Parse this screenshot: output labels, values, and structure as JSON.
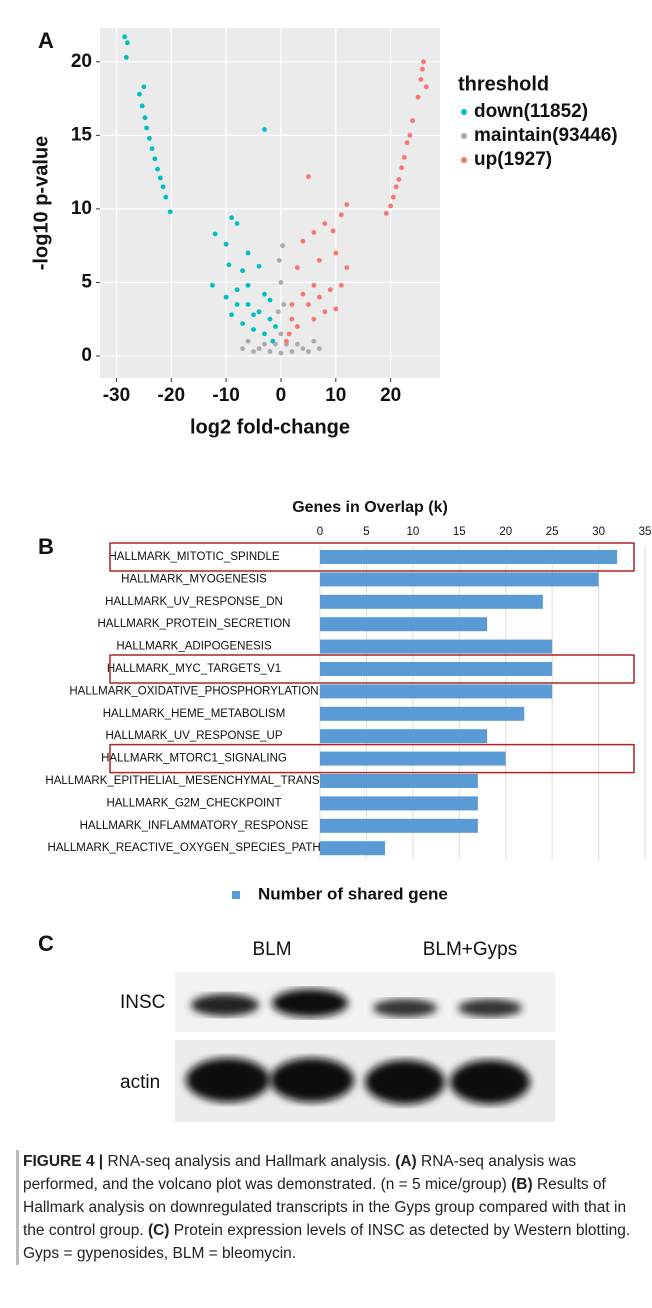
{
  "panels": [
    "A",
    "B",
    "C"
  ],
  "chart_data": [
    {
      "type": "scatter",
      "xlabel": "log2 fold-change",
      "ylabel": "-log10 p-value",
      "legend_title": "threshold",
      "legend": "right",
      "xlim": [
        -33,
        29
      ],
      "ylim": [
        -1.5,
        22.3
      ],
      "xticks": [
        -30,
        -20,
        -10,
        0,
        10,
        20
      ],
      "yticks": [
        0,
        5,
        10,
        15,
        20
      ],
      "grid": true,
      "series": [
        {
          "name": "down(11852)",
          "color": "#00bfc4",
          "x": [
            -28.5,
            -28,
            -28.2,
            -25.8,
            -25.3,
            -24.8,
            -24.5,
            -24,
            -23.5,
            -23,
            -22.5,
            -22,
            -21.5,
            -25,
            -21,
            -20.2,
            -3,
            -9,
            -8,
            -12,
            -10,
            -6,
            -9.5,
            -7,
            -4,
            -12.5,
            -10,
            -8,
            -6,
            -4,
            -2,
            -9,
            -7,
            -5,
            -3,
            -1.5,
            -6,
            -3,
            -2,
            -8,
            -5,
            -1
          ],
          "values": [
            21.7,
            21.3,
            20.3,
            17.8,
            17,
            16.2,
            15.5,
            14.8,
            14.1,
            13.4,
            12.7,
            12.1,
            11.5,
            18.3,
            10.8,
            9.8,
            15.4,
            9.4,
            9,
            8.3,
            7.6,
            7,
            6.2,
            5.8,
            6.1,
            4.8,
            4,
            3.5,
            3.5,
            3,
            2.5,
            2.8,
            2.2,
            1.8,
            1.5,
            1,
            4.8,
            4.2,
            3.8,
            4.5,
            2.8,
            2
          ]
        },
        {
          "name": "maintain(93446)",
          "color": "#aaaaaa",
          "x": [
            0,
            -2,
            2,
            -4,
            4,
            -6,
            6,
            -1,
            1,
            0,
            -0.5,
            0.5,
            0,
            -0.3,
            0.3,
            -7,
            7,
            -3,
            3,
            -5,
            5
          ],
          "values": [
            0.2,
            0.3,
            0.3,
            0.5,
            0.5,
            1,
            1,
            0.8,
            0.8,
            1.5,
            3,
            3.5,
            5,
            6.5,
            7.5,
            0.5,
            0.5,
            0.8,
            0.8,
            0.3,
            0.3
          ]
        },
        {
          "name": "up(1927)",
          "color": "#f8766d",
          "x": [
            26,
            25.8,
            26.5,
            25,
            24,
            23.5,
            23,
            22.5,
            22,
            21.5,
            21,
            20.5,
            20,
            19.2,
            25.5,
            5,
            12,
            11,
            8,
            9.5,
            6,
            4,
            10,
            7,
            3,
            12,
            11,
            9,
            6,
            4,
            2,
            8,
            10,
            6,
            3,
            1.5,
            5,
            7,
            2,
            1
          ],
          "values": [
            20,
            19.5,
            18.3,
            17.6,
            16,
            15,
            14.5,
            13.5,
            12.8,
            12,
            11.5,
            10.8,
            10.2,
            9.7,
            18.8,
            12.2,
            10.3,
            9.6,
            9,
            8.5,
            8.4,
            7.8,
            7,
            6.5,
            6,
            6,
            4.8,
            4.5,
            4.8,
            4.2,
            3.5,
            3,
            3.2,
            2.5,
            2,
            1.5,
            3.5,
            4,
            2.5,
            1
          ]
        }
      ]
    },
    {
      "type": "hbar",
      "title": "Genes in Overlap (k)",
      "xlim": [
        0,
        35
      ],
      "xticks": [
        0,
        5,
        10,
        15,
        20,
        25,
        30,
        35
      ],
      "grid": true,
      "categories": [
        "HALLMARK_MITOTIC_SPINDLE",
        "HALLMARK_MYOGENESIS",
        "HALLMARK_UV_RESPONSE_DN",
        "HALLMARK_PROTEIN_SECRETION",
        "HALLMARK_ADIPOGENESIS",
        "HALLMARK_MYC_TARGETS_V1",
        "HALLMARK_OXIDATIVE_PHOSPHORYLATION",
        "HALLMARK_HEME_METABOLISM",
        "HALLMARK_UV_RESPONSE_UP",
        "HALLMARK_MTORC1_SIGNALING",
        "HALLMARK_EPITHELIAL_MESENCHYMAL_TRANSITI...",
        "HALLMARK_G2M_CHECKPOINT",
        "HALLMARK_INFLAMMATORY_RESPONSE",
        "HALLMARK_REACTIVE_OXYGEN_SPECIES_PATHW..."
      ],
      "series": [
        {
          "name": "Number of shared gene",
          "color": "#5b9bd5",
          "values": [
            32,
            30,
            24,
            18,
            25,
            25,
            25,
            22,
            18,
            20,
            17,
            17,
            17,
            7
          ]
        }
      ],
      "highlight": [
        0,
        5,
        9
      ],
      "highlight_color": "#b22222",
      "legend": "bottom"
    }
  ],
  "blot": {
    "groups": [
      "BLM",
      "BLM+Gyps"
    ],
    "rows": [
      "INSC",
      "actin"
    ]
  },
  "caption": {
    "figure": "FIGURE 4 |",
    "intro": "RNA-seq analysis and Hallmark analysis.",
    "parts": [
      {
        "label": "(A)",
        "text": "RNA-seq analysis was performed, and the volcano plot was demonstrated. (n = 5 mice/group)"
      },
      {
        "label": "(B)",
        "text": "Results of Hallmark analysis on downregulated transcripts in the Gyps group compared with that in the control group."
      },
      {
        "label": "(C)",
        "text": "Protein expression levels of INSC as detected by Western blotting. Gyps = gypenosides, BLM = bleomycin."
      }
    ]
  }
}
